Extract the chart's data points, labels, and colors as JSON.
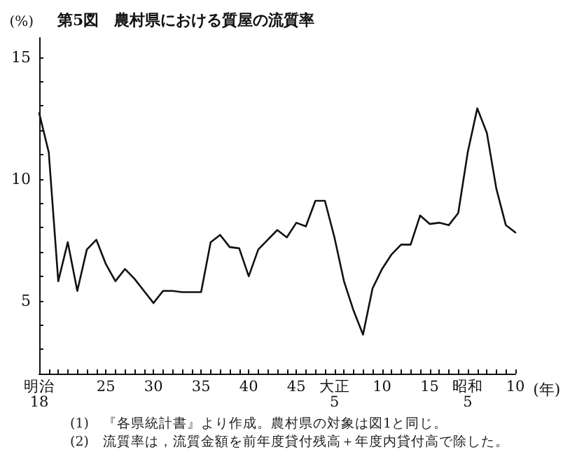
{
  "chart_data": {
    "type": "line",
    "title": "第5図　農村県における質屋の流質率",
    "ylabel": "(%)",
    "xlabel": "(年)",
    "annotations": [
      "(1)　『各県統計書』より作成。農村県の対象は図1と同じ。",
      "(2)　流質率は，流質金額を前年度貸付残高＋年度内貸付高で除した。"
    ],
    "categories": [
      "明治\n18",
      null,
      null,
      null,
      null,
      null,
      null,
      "25",
      null,
      null,
      null,
      null,
      "30",
      null,
      null,
      null,
      null,
      "35",
      null,
      null,
      null,
      null,
      "40",
      null,
      null,
      null,
      null,
      "45",
      null,
      null,
      null,
      "大正\n5",
      null,
      null,
      null,
      null,
      "10",
      null,
      null,
      null,
      null,
      "15",
      null,
      null,
      null,
      "昭和\n5",
      null,
      null,
      null,
      null,
      "10"
    ],
    "series": [
      {
        "color": "#111111",
        "values": [
          12.7,
          11.1,
          5.8,
          7.4,
          5.4,
          7.1,
          7.5,
          6.5,
          5.8,
          6.3,
          5.9,
          5.4,
          4.9,
          5.4,
          5.4,
          5.35,
          5.35,
          5.35,
          7.4,
          7.7,
          7.2,
          7.15,
          6.0,
          7.1,
          7.5,
          7.9,
          7.6,
          8.2,
          8.05,
          9.1,
          9.1,
          7.6,
          5.8,
          4.6,
          3.6,
          5.5,
          6.3,
          6.9,
          7.3,
          7.3,
          8.5,
          8.15,
          8.2,
          8.1,
          8.6,
          11.1,
          12.9,
          11.9,
          9.6,
          8.1,
          7.8
        ]
      }
    ],
    "ylim": [
      2,
      15.8
    ],
    "yticks": [
      {
        "value": 3,
        "label": null
      },
      {
        "value": 4,
        "label": null
      },
      5,
      {
        "value": 6,
        "label": null
      },
      {
        "value": 7,
        "label": null
      },
      {
        "value": 8,
        "label": null
      },
      {
        "value": 9,
        "label": null
      },
      10,
      {
        "value": 11,
        "label": null
      },
      {
        "value": 12,
        "label": null
      },
      {
        "value": 13,
        "label": null
      },
      {
        "value": 14,
        "label": null
      },
      15
    ],
    "grid": false,
    "marker": "none",
    "line_style": "solid"
  }
}
